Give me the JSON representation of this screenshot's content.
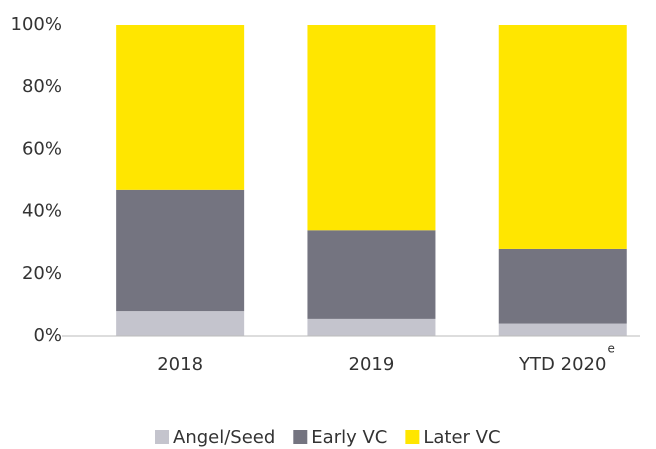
{
  "chart_data": {
    "type": "stacked_bar",
    "categories": [
      "2018",
      "2019",
      "YTD 2020"
    ],
    "annotation": "e",
    "series": [
      {
        "name": "Angel/Seed",
        "color": "#c4c4cd",
        "values": [
          8,
          5.5,
          4
        ]
      },
      {
        "name": "Early VC",
        "color": "#747480",
        "values": [
          39,
          28.5,
          24
        ]
      },
      {
        "name": "Later VC",
        "color": "#ffe600",
        "values": [
          53,
          66,
          72
        ]
      }
    ],
    "ylim": [
      0,
      100
    ],
    "yticks": [
      {
        "value": 0,
        "label": "0%"
      },
      {
        "value": 20,
        "label": "20%"
      },
      {
        "value": 40,
        "label": "40%"
      },
      {
        "value": 60,
        "label": "60%"
      },
      {
        "value": 80,
        "label": "80%"
      },
      {
        "value": 100,
        "label": "100%"
      }
    ],
    "legend": "bottom"
  }
}
